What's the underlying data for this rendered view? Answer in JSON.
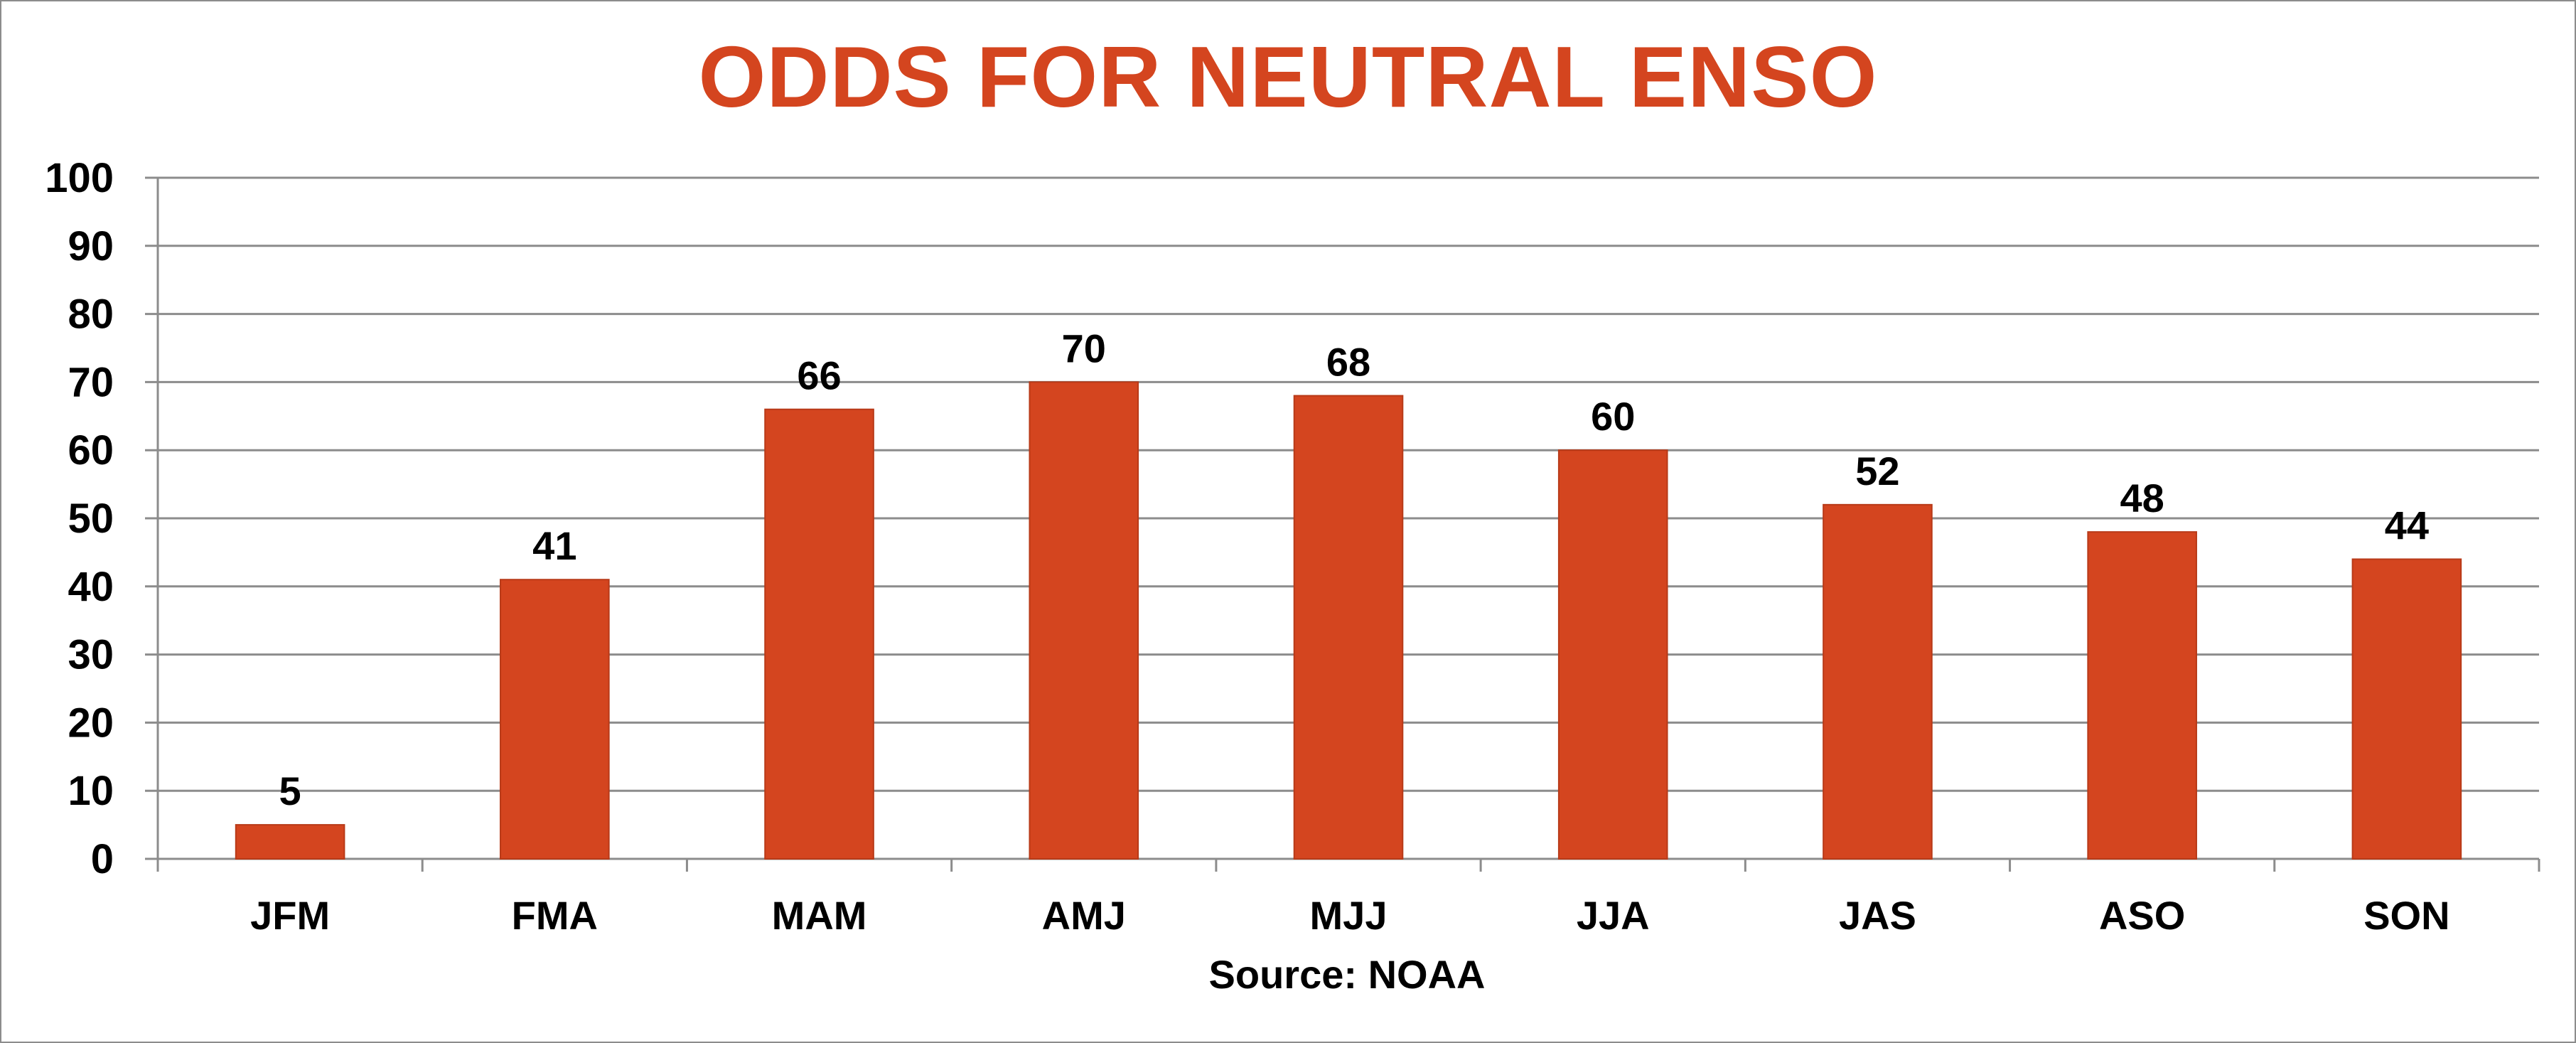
{
  "chart_data": {
    "type": "bar",
    "title": "ODDS FOR NEUTRAL ENSO",
    "categories": [
      "JFM",
      "FMA",
      "MAM",
      "AMJ",
      "MJJ",
      "JJA",
      "JAS",
      "ASO",
      "SON"
    ],
    "values": [
      5,
      41,
      66,
      70,
      68,
      60,
      52,
      48,
      44
    ],
    "xlabel": "",
    "ylabel": "",
    "ylim": [
      0,
      100
    ],
    "yticks": [
      0,
      10,
      20,
      30,
      40,
      50,
      60,
      70,
      80,
      90,
      100
    ],
    "grid": true,
    "legend": "none",
    "data_labels": true,
    "source": "Source: NOAA",
    "colors": {
      "bar": "#d4451f",
      "title": "#d4451f",
      "grid": "#8c8c8c",
      "text": "#000000"
    }
  }
}
